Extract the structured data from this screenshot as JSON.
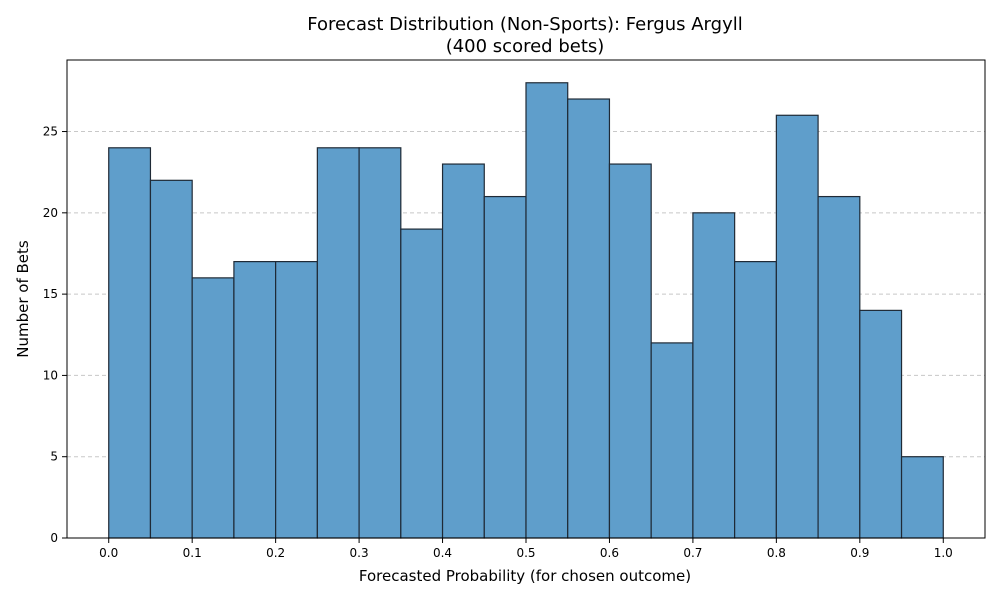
{
  "chart_data": {
    "type": "bar",
    "title": "Forecast Distribution (Non-Sports): Fergus Argyll",
    "subtitle": "(400 scored bets)",
    "xlabel": "Forecasted Probability (for chosen outcome)",
    "ylabel": "Number of Bets",
    "bin_edges": [
      0.0,
      0.05,
      0.1,
      0.15,
      0.2,
      0.25,
      0.3,
      0.35,
      0.4,
      0.45,
      0.5,
      0.55,
      0.6,
      0.65,
      0.7,
      0.75,
      0.8,
      0.85,
      0.9,
      0.95,
      1.0
    ],
    "values": [
      24,
      22,
      16,
      17,
      17,
      24,
      24,
      19,
      23,
      21,
      28,
      27,
      23,
      12,
      20,
      17,
      26,
      21,
      14,
      5
    ],
    "xlim": [
      -0.05,
      1.05
    ],
    "ylim": [
      0,
      29.4
    ],
    "xticks": [
      "0.0",
      "0.1",
      "0.2",
      "0.3",
      "0.4",
      "0.5",
      "0.6",
      "0.7",
      "0.8",
      "0.9",
      "1.0"
    ],
    "xtick_values": [
      0.0,
      0.1,
      0.2,
      0.3,
      0.4,
      0.5,
      0.6,
      0.7,
      0.8,
      0.9,
      1.0
    ],
    "yticks": [
      "0",
      "5",
      "10",
      "15",
      "20",
      "25"
    ],
    "ytick_values": [
      0,
      5,
      10,
      15,
      20,
      25
    ],
    "grid": "y-dashed",
    "legend": "none",
    "colors": {
      "bar_fill": "#5f9ecb",
      "bar_edge": "#1f2a36",
      "grid": "#c8c8c8",
      "axis": "#000000"
    }
  }
}
